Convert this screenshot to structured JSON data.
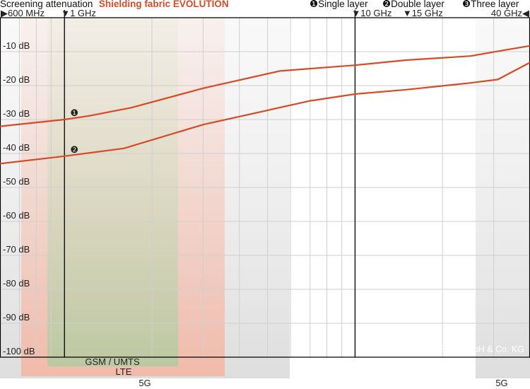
{
  "colors": {
    "series_line": "#d84a24",
    "brand_text": "#d84a24",
    "band_lte": "#f6d0c6",
    "band_gsm": "#d7dfc3",
    "band_5g": "#e8e8e8",
    "grid": "#cfcfcf",
    "axis": "#000000"
  },
  "header": {
    "title_prefix": "Screening attenuation",
    "title_product": "Shielding fabric EVOLUTION"
  },
  "legend": [
    {
      "glyph": "❶",
      "label": "Single layer"
    },
    {
      "glyph": "❷",
      "label": "Double layer"
    },
    {
      "glyph": "❸",
      "label": "Three layer"
    }
  ],
  "bands": [
    {
      "label": "GSM / UMTS"
    },
    {
      "label": "LTE"
    },
    {
      "label": "5G"
    },
    {
      "label": "5G"
    }
  ],
  "copyright": "© YSHIELD GmbH & Co. KG",
  "chart_data": {
    "type": "line",
    "x_scale": "log",
    "x_unit": "MHz",
    "xlim": [
      600,
      40000
    ],
    "ylim": [
      -100,
      0
    ],
    "grid": true,
    "frequency_markers": [
      {
        "label": "600 MHz",
        "mhz": 600,
        "glyph": "▶",
        "line": false
      },
      {
        "label": "1 GHz",
        "mhz": 1000,
        "glyph": "▼",
        "line": true
      },
      {
        "label": "10 GHz",
        "mhz": 10000,
        "glyph": "▼",
        "line": true
      },
      {
        "label": "15 GHz",
        "mhz": 15000,
        "glyph": "▼",
        "line": false
      },
      {
        "label": "40 GHz",
        "mhz": 40000,
        "glyph": "◀",
        "line": false
      }
    ],
    "y_ticks": [
      {
        "value": -10,
        "label": "-10 dB"
      },
      {
        "value": -20,
        "label": "-20 dB"
      },
      {
        "value": -30,
        "label": "-30 dB"
      },
      {
        "value": -40,
        "label": "-40 dB"
      },
      {
        "value": -50,
        "label": "-50 dB"
      },
      {
        "value": -60,
        "label": "-60 dB"
      },
      {
        "value": -70,
        "label": "-70 dB"
      },
      {
        "value": -80,
        "label": "-80 dB"
      },
      {
        "value": -90,
        "label": "-90 dB"
      },
      {
        "value": -100,
        "label": "-100 dB"
      }
    ],
    "series": [
      {
        "marker": "❶",
        "marker_at": 1000,
        "points": [
          [
            600,
            -32
          ],
          [
            1000,
            -30
          ],
          [
            1200,
            -29
          ],
          [
            1700,
            -26.5
          ],
          [
            3000,
            -20.8
          ],
          [
            5500,
            -15.7
          ],
          [
            10000,
            -14
          ],
          [
            15000,
            -12.5
          ],
          [
            25000,
            -11.3
          ],
          [
            33000,
            -9.5
          ],
          [
            40000,
            -8.3
          ]
        ]
      },
      {
        "marker": "❷",
        "marker_at": 1000,
        "points": [
          [
            600,
            -43
          ],
          [
            1000,
            -40.8
          ],
          [
            1600,
            -38.5
          ],
          [
            3000,
            -31.5
          ],
          [
            7000,
            -24.5
          ],
          [
            10000,
            -22.5
          ],
          [
            15000,
            -21.2
          ],
          [
            25000,
            -19.2
          ],
          [
            31000,
            -18.2
          ],
          [
            40000,
            -13.2
          ]
        ]
      }
    ]
  }
}
